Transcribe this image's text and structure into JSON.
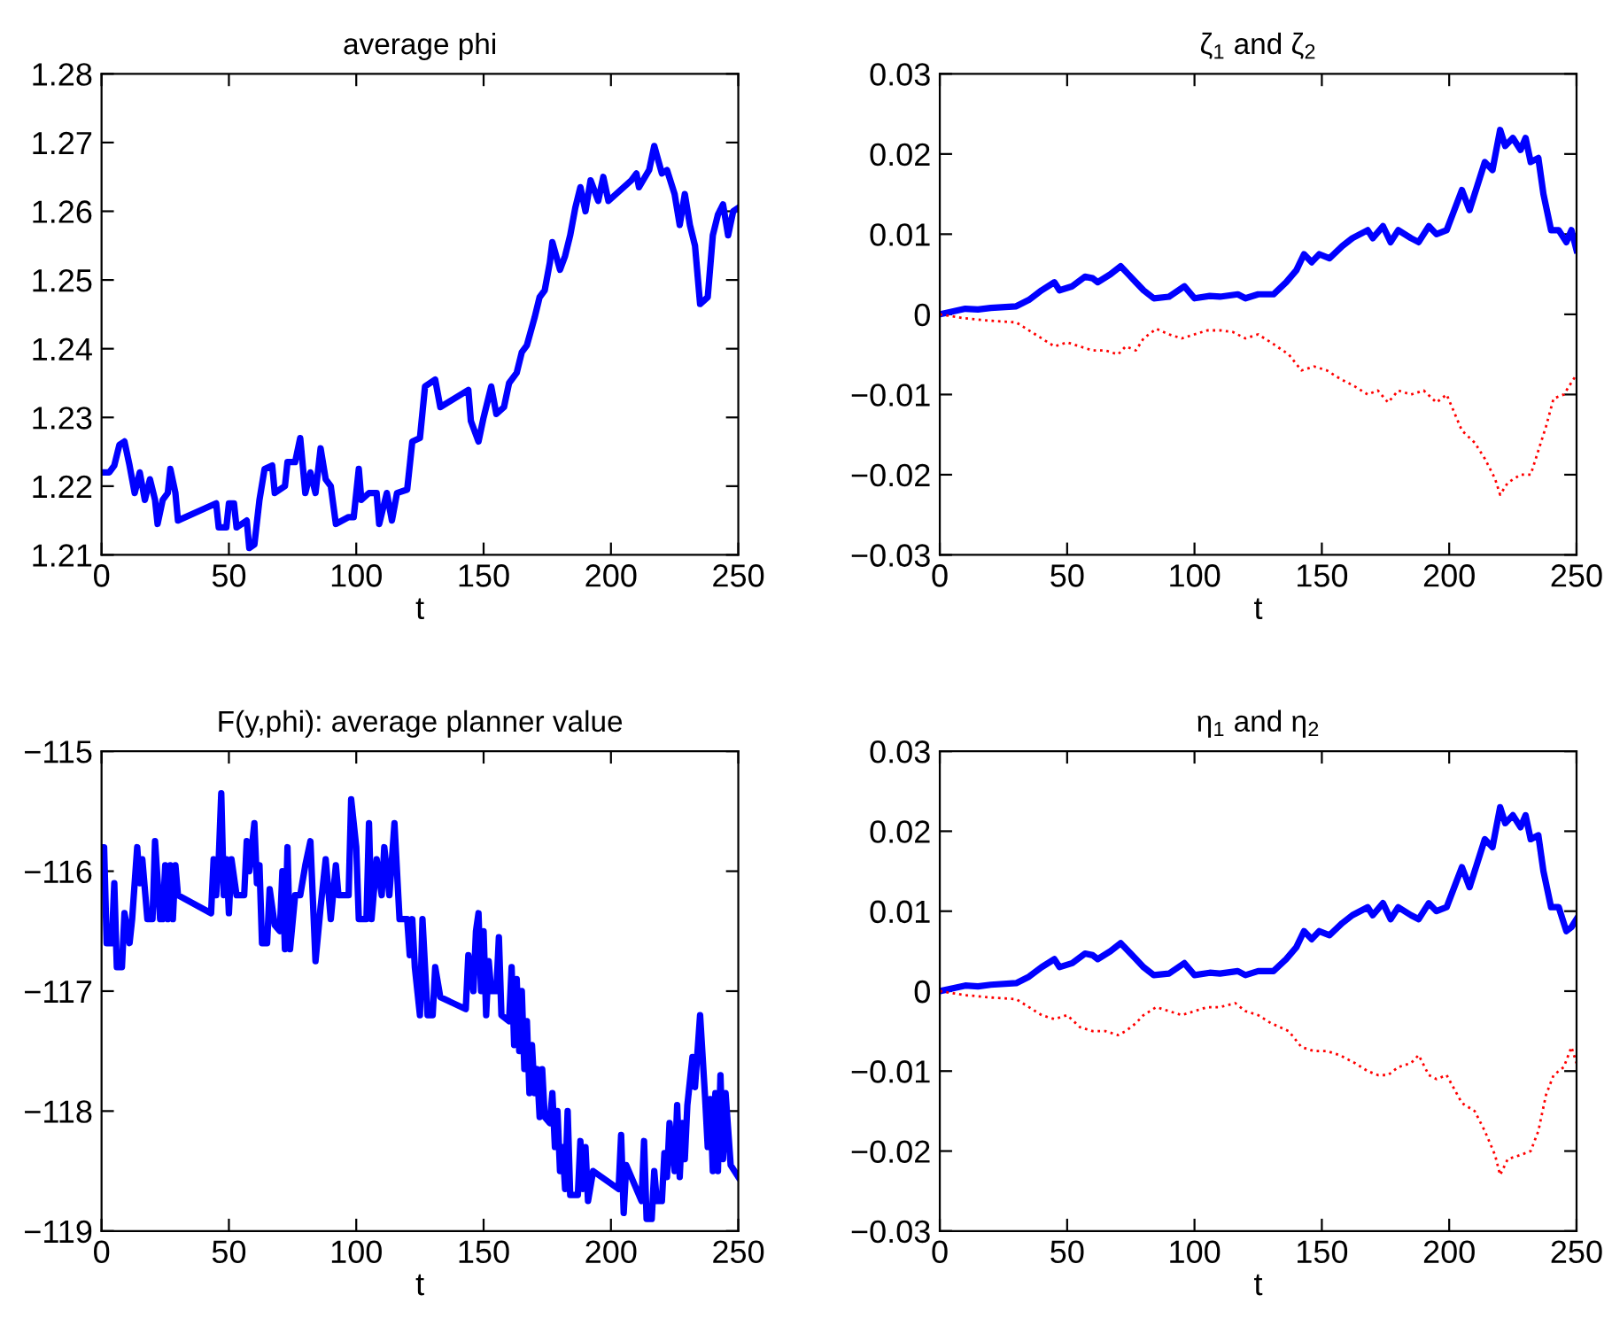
{
  "chart_data": [
    {
      "type": "line",
      "title": "average phi",
      "xlabel": "t",
      "xlim": [
        0,
        250
      ],
      "xticks": [
        0,
        50,
        100,
        150,
        200,
        250
      ],
      "ylim": [
        1.21,
        1.28
      ],
      "yticks": [
        1.21,
        1.22,
        1.23,
        1.24,
        1.25,
        1.26,
        1.27,
        1.28
      ],
      "series": [
        {
          "color": "#0000ff",
          "line_style": "solid",
          "x": [
            0,
            3,
            5,
            7,
            9,
            11,
            13,
            15,
            17,
            19,
            21,
            22,
            24,
            26,
            27,
            29,
            30,
            45,
            46,
            49,
            50,
            52,
            53,
            57,
            58,
            60,
            62,
            64,
            67,
            68,
            72,
            73,
            76,
            78,
            80,
            82,
            84,
            86,
            88,
            90,
            92,
            97,
            99,
            101,
            102,
            105,
            108,
            109,
            112,
            114,
            116,
            120,
            122,
            125,
            127,
            131,
            133,
            144,
            145,
            148,
            150,
            153,
            155,
            158,
            160,
            163,
            165,
            167,
            170,
            172,
            174,
            176,
            177,
            180,
            182,
            184,
            186,
            188,
            190,
            192,
            195,
            197,
            199,
            208,
            210,
            211,
            215,
            217,
            220,
            222,
            225,
            227,
            229,
            231,
            233,
            235,
            238,
            240,
            242,
            244,
            246,
            248,
            250
          ],
          "values": [
            1.222,
            1.222,
            1.223,
            1.226,
            1.2265,
            1.223,
            1.219,
            1.222,
            1.218,
            1.221,
            1.218,
            1.2145,
            1.218,
            1.219,
            1.2225,
            1.219,
            1.215,
            1.2175,
            1.214,
            1.214,
            1.2175,
            1.2175,
            1.214,
            1.215,
            1.211,
            1.2115,
            1.218,
            1.2225,
            1.223,
            1.219,
            1.22,
            1.2235,
            1.2235,
            1.227,
            1.219,
            1.222,
            1.219,
            1.2255,
            1.221,
            1.22,
            1.2145,
            1.2155,
            1.2155,
            1.2225,
            1.218,
            1.219,
            1.219,
            1.2145,
            1.219,
            1.215,
            1.219,
            1.2195,
            1.2265,
            1.227,
            1.2345,
            1.2355,
            1.2315,
            1.234,
            1.2295,
            1.2265,
            1.23,
            1.2345,
            1.2305,
            1.2315,
            1.235,
            1.2365,
            1.2395,
            1.2405,
            1.2445,
            1.2475,
            1.2485,
            1.2525,
            1.2555,
            1.2515,
            1.2535,
            1.2565,
            1.2605,
            1.2635,
            1.26,
            1.2645,
            1.2615,
            1.265,
            1.2615,
            1.2645,
            1.2655,
            1.2635,
            1.266,
            1.2695,
            1.2655,
            1.266,
            1.2625,
            1.258,
            1.2625,
            1.258,
            1.255,
            1.2465,
            1.2475,
            1.2565,
            1.2595,
            1.261,
            1.2565,
            1.26,
            1.2605
          ]
        }
      ]
    },
    {
      "type": "line",
      "title": "ζ$_{1}$ and ζ$_{2}$",
      "xlabel": "t",
      "xlim": [
        0,
        250
      ],
      "xticks": [
        0,
        50,
        100,
        150,
        200,
        250
      ],
      "ylim": [
        -0.03,
        0.03
      ],
      "yticks": [
        {
          "value": -0.03,
          "label": "−0.03"
        },
        {
          "value": -0.02,
          "label": "−0.02"
        },
        {
          "value": -0.01,
          "label": "−0.01"
        },
        0,
        0.01,
        0.02,
        0.03
      ],
      "series": [
        {
          "color": "#0000ff",
          "line_style": "solid",
          "x": [
            0,
            10,
            15,
            20,
            30,
            35,
            40,
            45,
            47,
            52,
            57,
            60,
            62,
            67,
            71,
            74,
            77,
            80,
            84,
            90,
            96,
            100,
            106,
            110,
            117,
            120,
            125,
            131,
            136,
            140,
            143,
            146,
            149,
            153,
            158,
            162,
            165,
            168,
            170,
            174,
            177,
            180,
            185,
            188,
            192,
            195,
            199,
            202,
            205,
            208,
            211,
            214,
            217,
            220,
            222,
            225,
            228,
            230,
            232,
            235,
            237,
            240,
            243,
            246,
            248,
            250
          ],
          "values": [
            0,
            0.0007,
            0.0006,
            0.0008,
            0.001,
            0.0018,
            0.003,
            0.004,
            0.003,
            0.0035,
            0.0047,
            0.0045,
            0.004,
            0.005,
            0.006,
            0.005,
            0.004,
            0.003,
            0.002,
            0.0022,
            0.0035,
            0.002,
            0.0023,
            0.0022,
            0.0025,
            0.002,
            0.0025,
            0.0025,
            0.004,
            0.0055,
            0.0075,
            0.0065,
            0.0075,
            0.007,
            0.0085,
            0.0095,
            0.01,
            0.0105,
            0.0095,
            0.011,
            0.009,
            0.0105,
            0.0095,
            0.009,
            0.011,
            0.01,
            0.0105,
            0.013,
            0.0155,
            0.013,
            0.016,
            0.019,
            0.018,
            0.023,
            0.021,
            0.022,
            0.0205,
            0.022,
            0.019,
            0.0195,
            0.015,
            0.0105,
            0.0105,
            0.009,
            0.0105,
            0.008
          ]
        },
        {
          "color": "#ff0000",
          "line_style": "dotted",
          "x": [
            0,
            10,
            20,
            30,
            40,
            45,
            50,
            55,
            60,
            65,
            70,
            73,
            77,
            80,
            85,
            90,
            95,
            100,
            105,
            110,
            115,
            120,
            125,
            130,
            137,
            142,
            147,
            152,
            157,
            163,
            168,
            172,
            176,
            180,
            185,
            190,
            195,
            199,
            205,
            210,
            214,
            218,
            220,
            223,
            228,
            232,
            235,
            238,
            241,
            245,
            250
          ],
          "values": [
            0,
            -0.0005,
            -0.0008,
            -0.001,
            -0.003,
            -0.004,
            -0.0035,
            -0.004,
            -0.0045,
            -0.0045,
            -0.005,
            -0.004,
            -0.0045,
            -0.003,
            -0.0018,
            -0.0025,
            -0.003,
            -0.0025,
            -0.002,
            -0.002,
            -0.0022,
            -0.003,
            -0.0025,
            -0.0035,
            -0.005,
            -0.007,
            -0.0065,
            -0.007,
            -0.008,
            -0.009,
            -0.01,
            -0.0095,
            -0.011,
            -0.0095,
            -0.01,
            -0.0095,
            -0.011,
            -0.01,
            -0.0145,
            -0.016,
            -0.018,
            -0.0205,
            -0.0225,
            -0.021,
            -0.02,
            -0.02,
            -0.017,
            -0.014,
            -0.0105,
            -0.01,
            -0.0075
          ]
        }
      ]
    },
    {
      "type": "line",
      "title": "F(y,phi): average planner value",
      "xlabel": "t",
      "xlim": [
        0,
        250
      ],
      "xticks": [
        0,
        50,
        100,
        150,
        200,
        250
      ],
      "ylim": [
        -119,
        -115
      ],
      "yticks": [
        {
          "value": -119,
          "label": "−119"
        },
        {
          "value": -118,
          "label": "−118"
        },
        {
          "value": -117,
          "label": "−117"
        },
        {
          "value": -116,
          "label": "−116"
        },
        {
          "value": -115,
          "label": "−115"
        }
      ],
      "series": [
        {
          "color": "#0000ff",
          "line_style": "solid",
          "x": [
            0,
            1,
            2,
            4,
            5,
            6,
            8,
            9,
            11,
            12,
            14,
            15,
            16,
            18,
            20,
            21,
            23,
            24,
            25,
            26,
            27,
            28,
            29,
            30,
            43,
            44,
            45,
            46,
            47,
            48,
            49,
            50,
            51,
            53,
            56,
            57,
            58,
            60,
            61,
            62,
            63,
            65,
            66,
            68,
            70,
            71,
            72,
            73,
            74,
            76,
            78,
            80,
            82,
            84,
            86,
            88,
            90,
            92,
            93,
            97,
            98,
            100,
            101,
            104,
            105,
            106,
            108,
            110,
            111,
            113,
            115,
            117,
            120,
            121,
            122,
            123,
            125,
            126,
            128,
            130,
            131,
            133,
            143,
            144,
            146,
            147,
            148,
            149,
            150,
            151,
            152,
            153,
            155,
            156,
            157,
            160,
            161,
            162,
            163,
            164,
            165,
            166,
            167,
            168,
            169,
            170,
            171,
            172,
            173,
            174,
            176,
            177,
            178,
            179,
            180,
            181,
            182,
            183,
            184,
            187,
            188,
            189,
            190,
            191,
            193,
            203,
            204,
            205,
            206,
            212,
            213,
            214,
            216,
            217,
            218,
            220,
            221,
            222,
            223,
            225,
            226,
            227,
            228,
            229,
            230,
            232,
            233,
            235,
            237,
            238,
            239,
            240,
            241,
            242,
            243,
            244,
            245,
            247,
            250
          ],
          "values": [
            -115.8,
            -115.8,
            -116.6,
            -116.6,
            -116.1,
            -116.8,
            -116.8,
            -116.35,
            -116.6,
            -116.4,
            -115.8,
            -116.1,
            -115.9,
            -116.4,
            -116.4,
            -115.75,
            -116.4,
            -116.4,
            -115.95,
            -116.4,
            -115.95,
            -116.4,
            -115.95,
            -116.2,
            -116.35,
            -115.9,
            -116.2,
            -115.9,
            -115.35,
            -116.2,
            -115.9,
            -116.35,
            -115.9,
            -116.2,
            -116.2,
            -115.75,
            -116.0,
            -115.6,
            -116.1,
            -115.95,
            -116.6,
            -116.6,
            -116.15,
            -116.45,
            -116.5,
            -116.0,
            -116.65,
            -115.8,
            -116.65,
            -116.2,
            -116.2,
            -115.95,
            -115.75,
            -116.75,
            -116.3,
            -115.9,
            -116.4,
            -115.95,
            -116.2,
            -116.2,
            -115.4,
            -115.8,
            -116.4,
            -116.4,
            -115.6,
            -116.4,
            -115.9,
            -116.2,
            -115.8,
            -116.2,
            -115.6,
            -116.4,
            -116.4,
            -116.7,
            -116.4,
            -116.8,
            -117.2,
            -116.4,
            -117.2,
            -117.2,
            -116.8,
            -117.05,
            -117.15,
            -116.7,
            -117.0,
            -116.5,
            -116.35,
            -117.0,
            -116.5,
            -117.2,
            -116.75,
            -117.0,
            -117.0,
            -116.55,
            -117.2,
            -117.25,
            -116.8,
            -117.45,
            -116.9,
            -117.5,
            -117.0,
            -117.65,
            -117.25,
            -117.85,
            -117.45,
            -117.85,
            -117.65,
            -118.05,
            -117.65,
            -118.05,
            -118.1,
            -117.85,
            -118.3,
            -118.0,
            -118.5,
            -118.3,
            -118.65,
            -118.0,
            -118.7,
            -118.7,
            -118.25,
            -118.65,
            -118.3,
            -118.75,
            -118.5,
            -118.65,
            -118.2,
            -118.85,
            -118.45,
            -118.75,
            -118.25,
            -118.9,
            -118.9,
            -118.5,
            -118.75,
            -118.75,
            -118.35,
            -118.55,
            -118.1,
            -118.5,
            -117.95,
            -118.55,
            -118.1,
            -118.4,
            -117.95,
            -117.55,
            -117.8,
            -117.2,
            -117.9,
            -118.3,
            -117.9,
            -118.5,
            -117.85,
            -118.5,
            -117.7,
            -118.4,
            -117.85,
            -118.45,
            -118.55
          ]
        }
      ]
    },
    {
      "type": "line",
      "title": "η$_{1}$ and η$_{2}$",
      "xlabel": "t",
      "xlim": [
        0,
        250
      ],
      "xticks": [
        0,
        50,
        100,
        150,
        200,
        250
      ],
      "ylim": [
        -0.03,
        0.03
      ],
      "yticks": [
        {
          "value": -0.03,
          "label": "−0.03"
        },
        {
          "value": -0.02,
          "label": "−0.02"
        },
        {
          "value": -0.01,
          "label": "−0.01"
        },
        0,
        0.01,
        0.02,
        0.03
      ],
      "series": [
        {
          "color": "#0000ff",
          "line_style": "solid",
          "x": [
            0,
            10,
            15,
            20,
            30,
            35,
            40,
            45,
            47,
            52,
            57,
            60,
            62,
            67,
            71,
            74,
            77,
            80,
            84,
            90,
            96,
            100,
            106,
            110,
            117,
            120,
            125,
            131,
            136,
            140,
            143,
            146,
            149,
            153,
            158,
            162,
            165,
            168,
            170,
            174,
            177,
            180,
            185,
            188,
            192,
            195,
            199,
            202,
            205,
            208,
            211,
            214,
            217,
            220,
            222,
            225,
            228,
            230,
            232,
            235,
            237,
            240,
            243,
            246,
            248,
            250
          ],
          "values": [
            0,
            0.0007,
            0.0006,
            0.0008,
            0.001,
            0.0018,
            0.003,
            0.004,
            0.003,
            0.0035,
            0.0047,
            0.0045,
            0.004,
            0.005,
            0.006,
            0.005,
            0.004,
            0.003,
            0.002,
            0.0022,
            0.0035,
            0.002,
            0.0023,
            0.0022,
            0.0025,
            0.002,
            0.0025,
            0.0025,
            0.004,
            0.0055,
            0.0075,
            0.0065,
            0.0075,
            0.007,
            0.0085,
            0.0095,
            0.01,
            0.0105,
            0.0095,
            0.011,
            0.009,
            0.0105,
            0.0095,
            0.009,
            0.011,
            0.01,
            0.0105,
            0.013,
            0.0155,
            0.013,
            0.016,
            0.019,
            0.018,
            0.023,
            0.021,
            0.022,
            0.0205,
            0.022,
            0.019,
            0.0195,
            0.015,
            0.0105,
            0.0105,
            0.0075,
            0.008,
            0.009
          ]
        },
        {
          "color": "#ff0000",
          "line_style": "dotted",
          "x": [
            0,
            10,
            20,
            30,
            40,
            45,
            50,
            55,
            60,
            65,
            70,
            73,
            77,
            80,
            85,
            90,
            95,
            100,
            105,
            110,
            116,
            120,
            125,
            130,
            137,
            142,
            147,
            152,
            157,
            163,
            168,
            172,
            176,
            180,
            185,
            188,
            192,
            195,
            199,
            205,
            210,
            214,
            218,
            220,
            223,
            228,
            232,
            235,
            238,
            241,
            245,
            248,
            250
          ],
          "values": [
            0,
            -0.0005,
            -0.0008,
            -0.001,
            -0.003,
            -0.0035,
            -0.003,
            -0.0045,
            -0.005,
            -0.005,
            -0.0055,
            -0.005,
            -0.004,
            -0.003,
            -0.002,
            -0.0025,
            -0.003,
            -0.0025,
            -0.002,
            -0.002,
            -0.0015,
            -0.0025,
            -0.003,
            -0.004,
            -0.005,
            -0.007,
            -0.0075,
            -0.0075,
            -0.008,
            -0.009,
            -0.01,
            -0.0105,
            -0.0105,
            -0.0095,
            -0.009,
            -0.008,
            -0.0105,
            -0.011,
            -0.0105,
            -0.014,
            -0.015,
            -0.0175,
            -0.0205,
            -0.023,
            -0.021,
            -0.0205,
            -0.02,
            -0.0175,
            -0.013,
            -0.0105,
            -0.0095,
            -0.007,
            -0.009
          ]
        }
      ]
    }
  ]
}
